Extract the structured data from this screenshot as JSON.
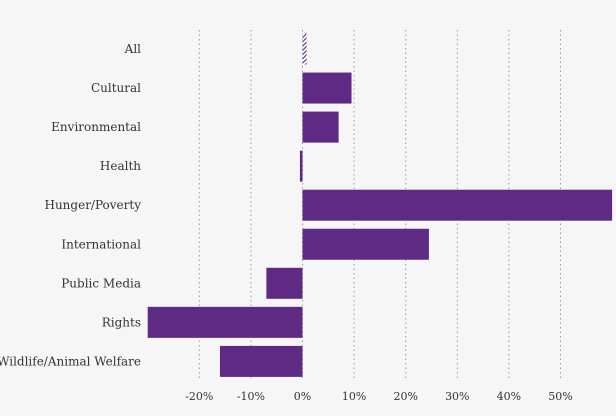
{
  "chart_data": {
    "type": "bar",
    "orientation": "horizontal",
    "categories": [
      "All",
      "Cultural",
      "Environmental",
      "Health",
      "Hunger/Poverty",
      "International",
      "Public Media",
      "Rights",
      "Wildlife/Animal Welfare"
    ],
    "values": [
      0.8,
      9.5,
      7,
      -0.5,
      60,
      24.5,
      -7,
      -30,
      -16
    ],
    "highlight_category": "All",
    "bar_color": "#5e2a84",
    "x_ticks": [
      "-20%",
      "-10%",
      "0%",
      "10%",
      "20%",
      "30%",
      "40%",
      "50%"
    ],
    "x_tick_values": [
      -20,
      -10,
      0,
      10,
      20,
      30,
      40,
      50
    ],
    "xlim": [
      -30,
      60
    ],
    "grid": "vertical-dotted",
    "title": "",
    "xlabel": "",
    "ylabel": ""
  }
}
